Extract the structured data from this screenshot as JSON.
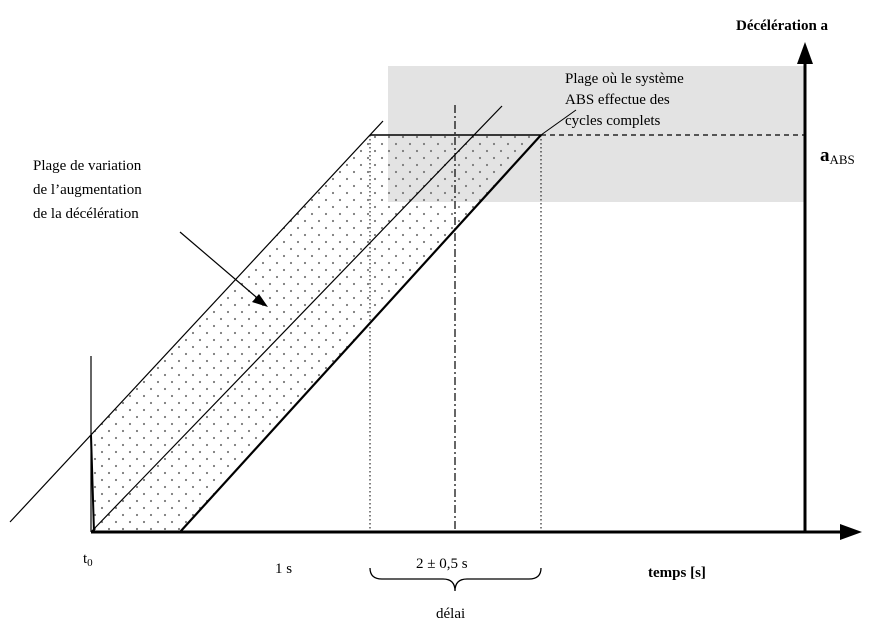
{
  "y_axis": {
    "label": "Décélération a"
  },
  "x_axis": {
    "label": "temps [s]"
  },
  "ticks": {
    "t0_main": "t",
    "t0_sub": "0",
    "one_second": "1 s",
    "window": "2 ± 0,5 s"
  },
  "brace_label": "délai",
  "a_abs": {
    "main": "a",
    "sub": "ABS"
  },
  "annotations": {
    "abs_zone": [
      "Plage où le système",
      "ABS effectue des",
      "cycles complets"
    ],
    "variation": [
      "Plage de variation",
      "de l’augmentation",
      "de la décélération"
    ]
  },
  "colors": {
    "abs_zone_fill": "#e3e3e3",
    "ink": "#000000",
    "dots": "#7a7a7a"
  }
}
